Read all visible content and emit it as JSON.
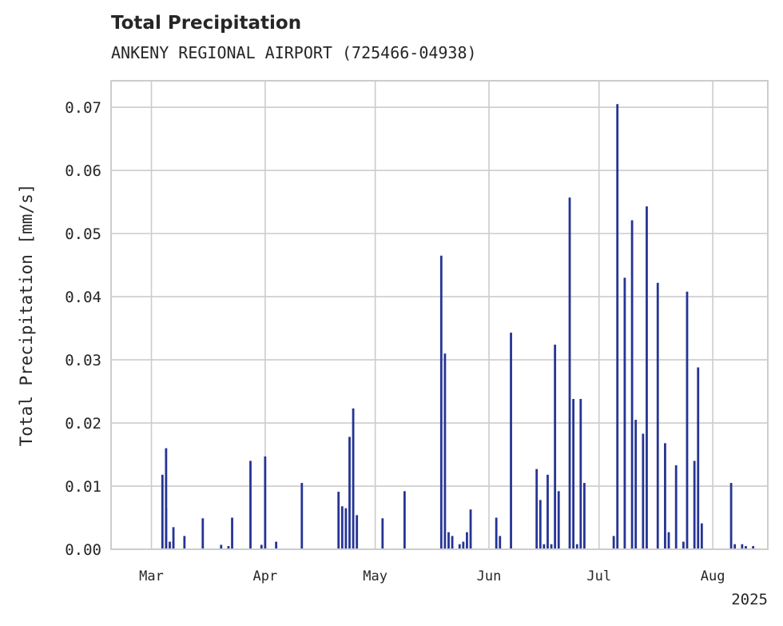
{
  "chart_data": {
    "type": "bar",
    "title": "Total Precipitation",
    "subtitle": "ANKENY REGIONAL AIRPORT (725466-04938)",
    "xlabel": "",
    "ylabel": "Total Precipitation [mm/s]",
    "year_label": "2025",
    "ylim": [
      0,
      0.0742
    ],
    "xlim": [
      "2025-02-18",
      "2025-08-16"
    ],
    "grid": true,
    "yticks": [
      {
        "value": 0.0,
        "label": "0.00"
      },
      {
        "value": 0.01,
        "label": "0.01"
      },
      {
        "value": 0.02,
        "label": "0.02"
      },
      {
        "value": 0.03,
        "label": "0.03"
      },
      {
        "value": 0.04,
        "label": "0.04"
      },
      {
        "value": 0.05,
        "label": "0.05"
      },
      {
        "value": 0.06,
        "label": "0.06"
      },
      {
        "value": 0.07,
        "label": "0.07"
      }
    ],
    "xticks": [
      {
        "value": "2025-03-01",
        "label": "Mar"
      },
      {
        "value": "2025-04-01",
        "label": "Apr"
      },
      {
        "value": "2025-05-01",
        "label": "May"
      },
      {
        "value": "2025-06-01",
        "label": "Jun"
      },
      {
        "value": "2025-07-01",
        "label": "Jul"
      },
      {
        "value": "2025-08-01",
        "label": "Aug"
      }
    ],
    "colors": {
      "bar": "#253494",
      "grid": "#cccccc",
      "axes": "#cccccc"
    },
    "series": [
      {
        "x": [
          "2025-03-04",
          "2025-03-05",
          "2025-03-05",
          "2025-03-06",
          "2025-03-07",
          "2025-03-07",
          "2025-03-10",
          "2025-03-15",
          "2025-03-20",
          "2025-03-22",
          "2025-03-23",
          "2025-03-28",
          "2025-03-31",
          "2025-04-01",
          "2025-04-04",
          "2025-04-11",
          "2025-04-21",
          "2025-04-22",
          "2025-04-23",
          "2025-04-24",
          "2025-04-25",
          "2025-04-26",
          "2025-05-03",
          "2025-05-09",
          "2025-05-19",
          "2025-05-20",
          "2025-05-21",
          "2025-05-22",
          "2025-05-24",
          "2025-05-25",
          "2025-05-26",
          "2025-05-27",
          "2025-06-03",
          "2025-06-04",
          "2025-06-07",
          "2025-06-14",
          "2025-06-15",
          "2025-06-16",
          "2025-06-17",
          "2025-06-18",
          "2025-06-19",
          "2025-06-20",
          "2025-06-23",
          "2025-06-24",
          "2025-06-25",
          "2025-06-26",
          "2025-06-27",
          "2025-07-05",
          "2025-07-06",
          "2025-07-08",
          "2025-07-10",
          "2025-07-11",
          "2025-07-13",
          "2025-07-14",
          "2025-07-17",
          "2025-07-19",
          "2025-07-20",
          "2025-07-22",
          "2025-07-24",
          "2025-07-25",
          "2025-07-27",
          "2025-07-28",
          "2025-07-29",
          "2025-08-06",
          "2025-08-07",
          "2025-08-09",
          "2025-08-10",
          "2025-08-12"
        ],
        "values": [
          0.0118,
          0.016,
          0.0065,
          0.0012,
          0.0035,
          0.0012,
          0.0021,
          0.0049,
          0.0007,
          0.0005,
          0.005,
          0.014,
          0.0007,
          0.0147,
          0.0012,
          0.0105,
          0.0091,
          0.0068,
          0.0065,
          0.0178,
          0.0223,
          0.0054,
          0.0049,
          0.0092,
          0.0465,
          0.031,
          0.0027,
          0.0021,
          0.0008,
          0.0012,
          0.0027,
          0.0063,
          0.005,
          0.0021,
          0.0343,
          0.0127,
          0.0078,
          0.0008,
          0.0118,
          0.0008,
          0.0324,
          0.0092,
          0.0557,
          0.0238,
          0.0008,
          0.0238,
          0.0105,
          0.0021,
          0.0705,
          0.043,
          0.0521,
          0.0205,
          0.0183,
          0.0543,
          0.0422,
          0.0168,
          0.0027,
          0.0133,
          0.0012,
          0.0408,
          0.014,
          0.0288,
          0.0041,
          0.0105,
          0.0008,
          0.0008,
          0.0005,
          0.0005
        ]
      }
    ]
  }
}
